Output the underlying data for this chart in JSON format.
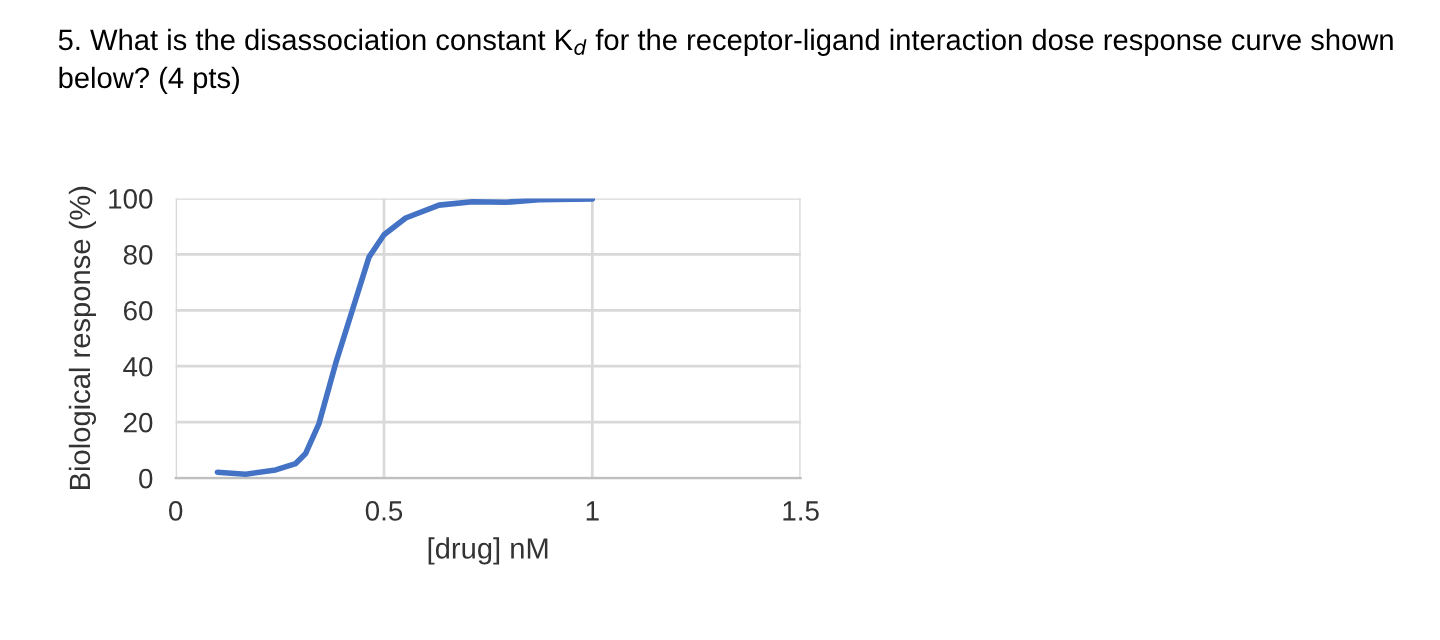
{
  "chart_data": {
    "type": "line",
    "title": "5. What is the disassociation constant K$_{d}$ for the receptor-ligand interaction dose response curve shown below? (4 pts)",
    "xlabel": "[drug] nM",
    "ylabel": "Biological response (%)",
    "x": [
      0.1,
      0.168,
      0.24,
      0.288,
      0.312,
      0.344,
      0.384,
      0.424,
      0.464,
      0.5,
      0.552,
      0.632,
      0.712,
      0.792,
      0.872,
      1.0
    ],
    "series": [
      {
        "color": "#4472c4",
        "values": [
          2.1,
          1.4,
          2.9,
          5.2,
          8.8,
          19.5,
          41,
          60,
          79,
          87,
          93,
          97.6,
          98.8,
          98.6,
          99.5,
          99.8
        ]
      }
    ],
    "xlim": [
      0,
      1.5
    ],
    "xticks": [
      0,
      0.5,
      1,
      1.5
    ],
    "ylim": [
      0,
      100
    ],
    "yticks": [
      0,
      20,
      40,
      60,
      80,
      100
    ],
    "grid": true,
    "marker": "none",
    "line_style": "solid",
    "legend": false
  }
}
